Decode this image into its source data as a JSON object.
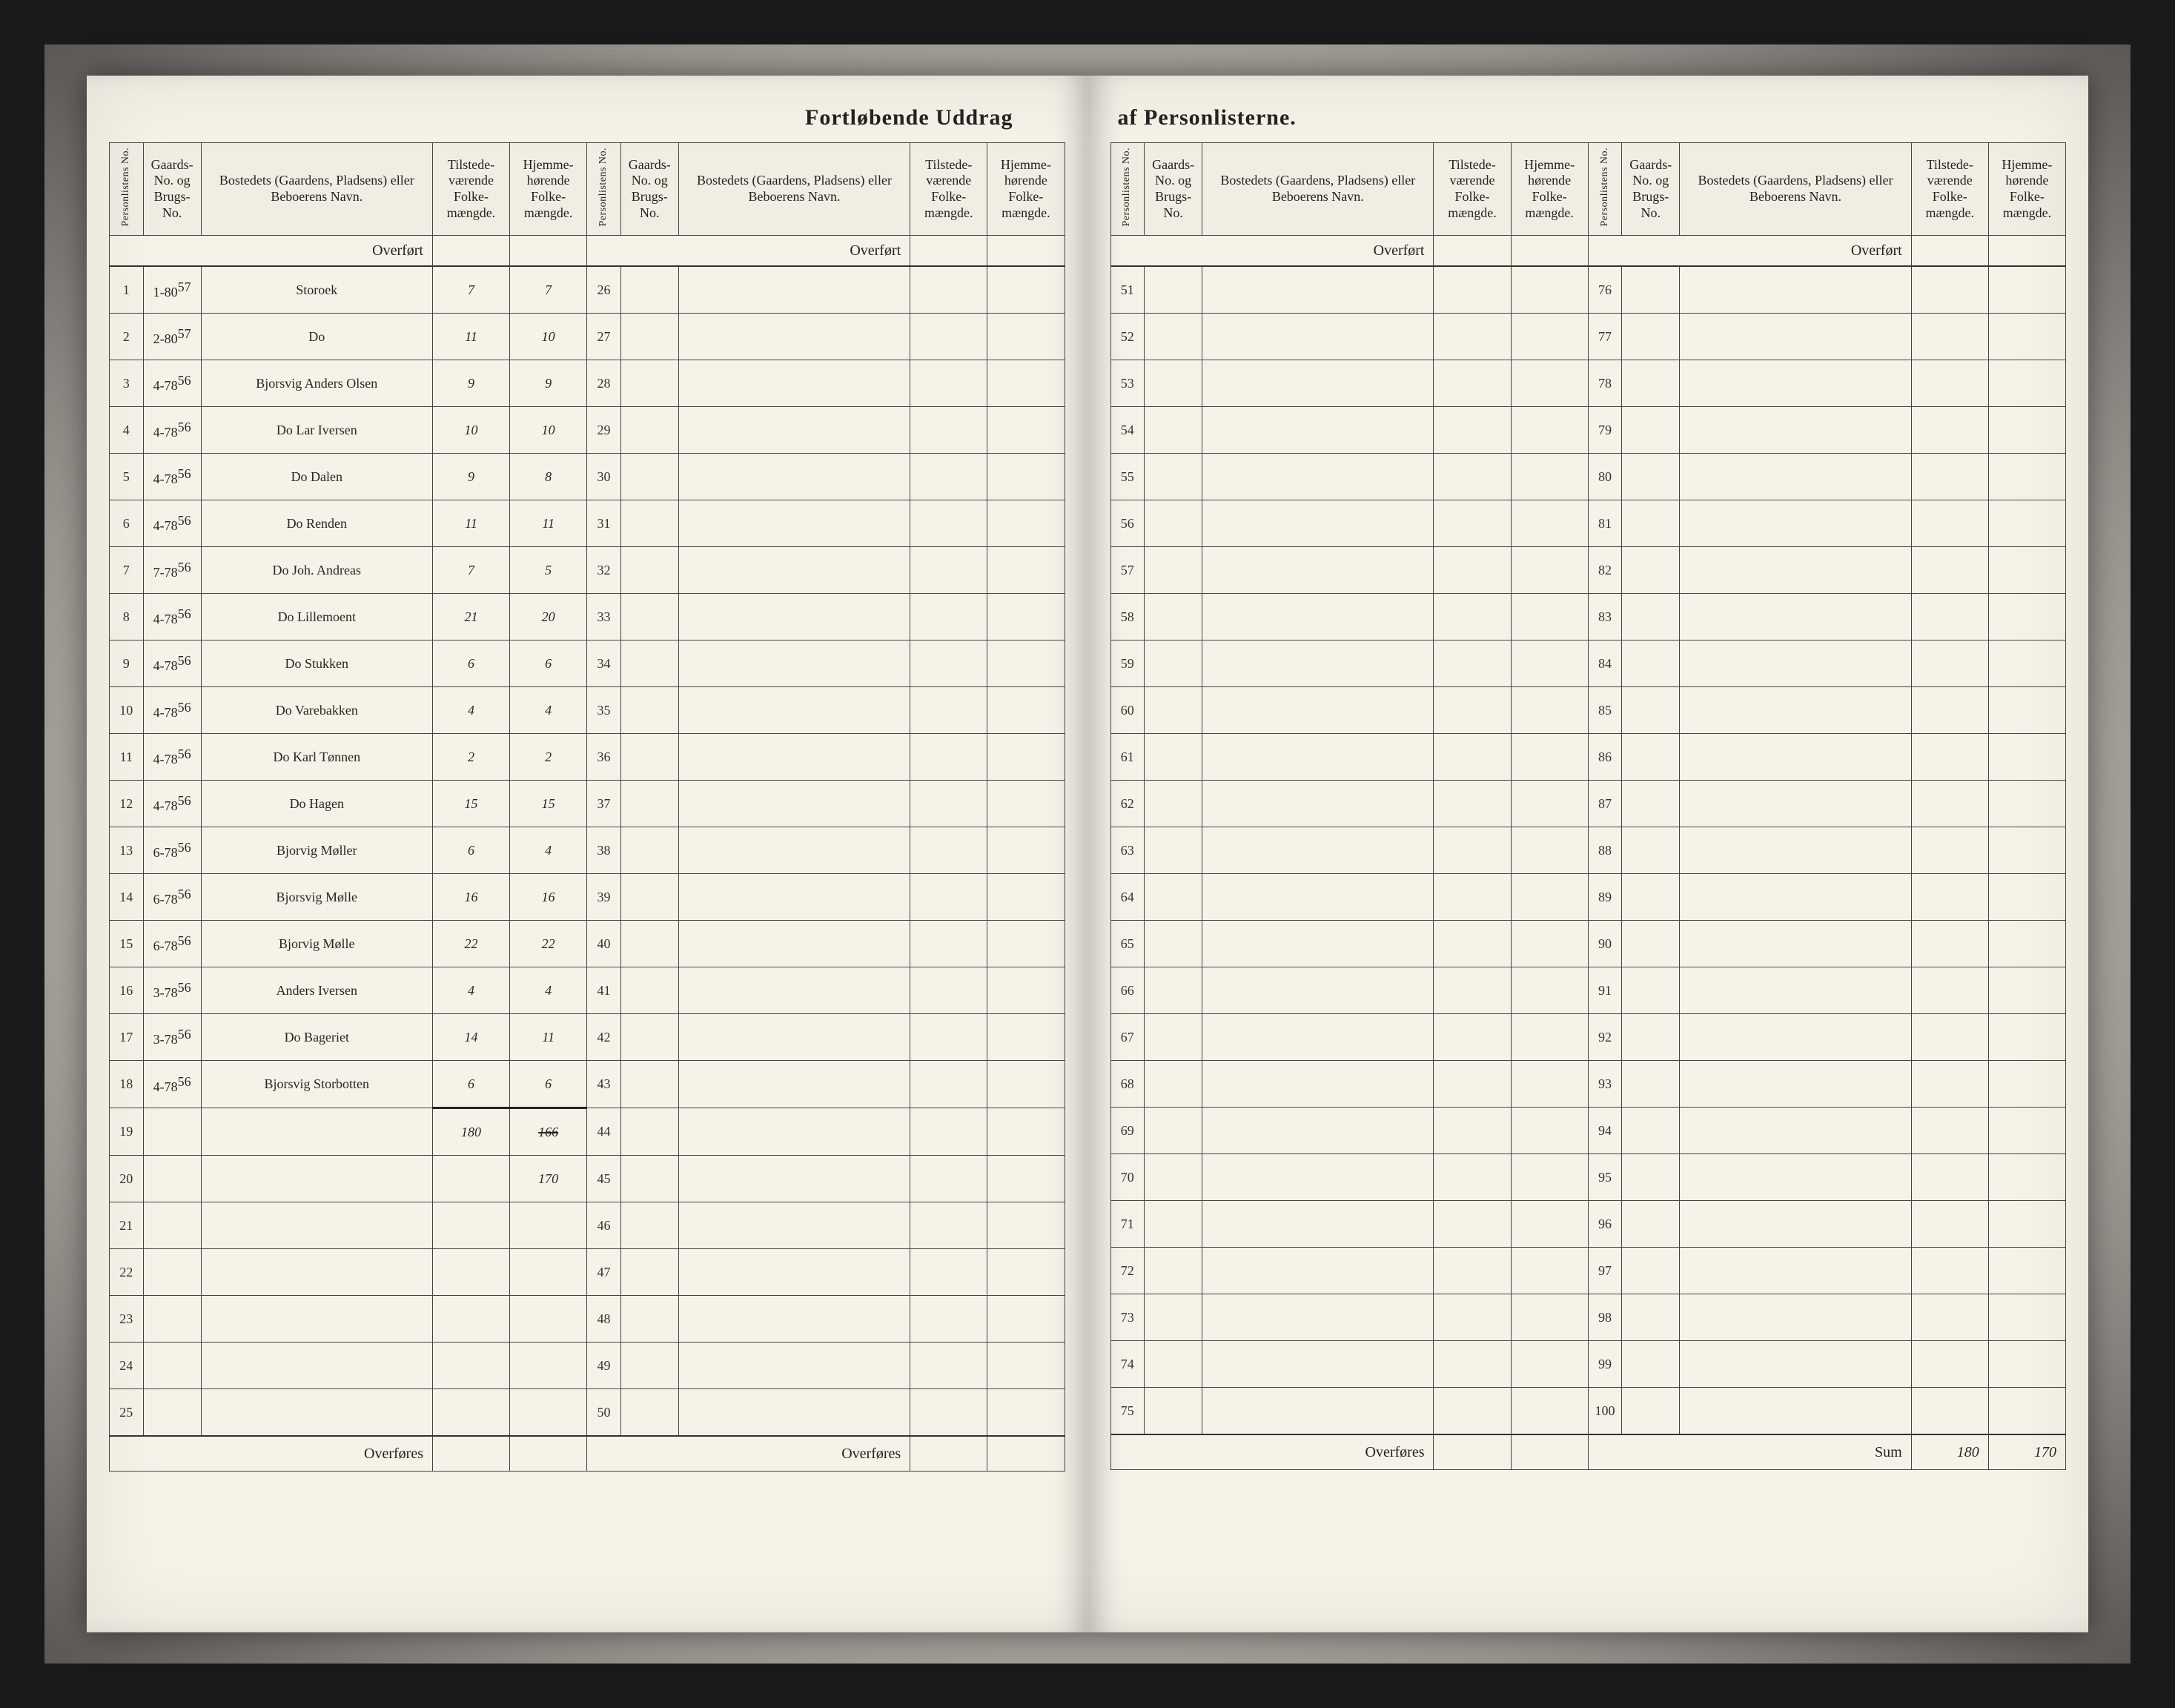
{
  "title_left": "Fortløbende Uddrag",
  "title_right": "af Personlisterne.",
  "headers": {
    "personliste_no": "Personlistens No.",
    "gaards_no": "Gaards-No. og Brugs-No.",
    "bosted": "Bostedets (Gaardens, Pladsens) eller Beboerens Navn.",
    "tilstede": "Tilstede-værende Folke-mængde.",
    "hjemme": "Hjemme-hørende Folke-mængde."
  },
  "overfort": "Overført",
  "overfores": "Overføres",
  "sum_label": "Sum",
  "sum_tilstede": "180",
  "sum_hjemme": "170",
  "subtotal_tilstede": "180",
  "subtotal_hjemme_struck": "166",
  "subtotal_hjemme_corr": "170",
  "sections": [
    {
      "start": 1,
      "rows": [
        {
          "idx": "1",
          "g": "1-80",
          "sup": "57",
          "name": "Storoek",
          "t": "7",
          "h": "7"
        },
        {
          "idx": "2",
          "g": "2-80",
          "sup": "57",
          "name": "Do",
          "t": "11",
          "h": "10"
        },
        {
          "idx": "3",
          "g": "4-78",
          "sup": "56",
          "name": "Bjorsvig Anders Olsen",
          "t": "9",
          "h": "9"
        },
        {
          "idx": "4",
          "g": "4-78",
          "sup": "56",
          "name": "Do Lar Iversen",
          "t": "10",
          "h": "10"
        },
        {
          "idx": "5",
          "g": "4-78",
          "sup": "56",
          "name": "Do Dalen",
          "t": "9",
          "h": "8"
        },
        {
          "idx": "6",
          "g": "4-78",
          "sup": "56",
          "name": "Do Renden",
          "t": "11",
          "h": "11"
        },
        {
          "idx": "7",
          "g": "7-78",
          "sup": "56",
          "name": "Do Joh. Andreas",
          "t": "7",
          "h": "5"
        },
        {
          "idx": "8",
          "g": "4-78",
          "sup": "56",
          "name": "Do Lillemoent",
          "t": "21",
          "h": "20"
        },
        {
          "idx": "9",
          "g": "4-78",
          "sup": "56",
          "name": "Do Stukken",
          "t": "6",
          "h": "6"
        },
        {
          "idx": "10",
          "g": "4-78",
          "sup": "56",
          "name": "Do Varebakken",
          "t": "4",
          "h": "4"
        },
        {
          "idx": "11",
          "g": "4-78",
          "sup": "56",
          "name": "Do Karl Tønnen",
          "t": "2",
          "h": "2"
        },
        {
          "idx": "12",
          "g": "4-78",
          "sup": "56",
          "name": "Do Hagen",
          "t": "15",
          "h": "15"
        },
        {
          "idx": "13",
          "g": "6-78",
          "sup": "56",
          "name": "Bjorvig Møller",
          "t": "6",
          "h": "4"
        },
        {
          "idx": "14",
          "g": "6-78",
          "sup": "56",
          "name": "Bjorsvig Mølle",
          "t": "16",
          "h": "16"
        },
        {
          "idx": "15",
          "g": "6-78",
          "sup": "56",
          "name": "Bjorvig Mølle",
          "t": "22",
          "h": "22"
        },
        {
          "idx": "16",
          "g": "3-78",
          "sup": "56",
          "name": "Anders Iversen",
          "t": "4",
          "h": "4"
        },
        {
          "idx": "17",
          "g": "3-78",
          "sup": "56",
          "name": "Do Bageriet",
          "t": "14",
          "h": "11"
        },
        {
          "idx": "18",
          "g": "4-78",
          "sup": "56",
          "name": "Bjorsvig Storbotten",
          "t": "6",
          "h": "6"
        },
        {
          "idx": "19",
          "g": "",
          "sup": "",
          "name": "",
          "t": "",
          "h": ""
        },
        {
          "idx": "20",
          "g": "",
          "sup": "",
          "name": "",
          "t": "",
          "h": ""
        },
        {
          "idx": "21",
          "g": "",
          "sup": "",
          "name": "",
          "t": "",
          "h": ""
        },
        {
          "idx": "22",
          "g": "",
          "sup": "",
          "name": "",
          "t": "",
          "h": ""
        },
        {
          "idx": "23",
          "g": "",
          "sup": "",
          "name": "",
          "t": "",
          "h": ""
        },
        {
          "idx": "24",
          "g": "",
          "sup": "",
          "name": "",
          "t": "",
          "h": ""
        },
        {
          "idx": "25",
          "g": "",
          "sup": "",
          "name": "",
          "t": "",
          "h": ""
        }
      ]
    },
    {
      "start": 26,
      "rows": 25
    },
    {
      "start": 51,
      "rows": 25
    },
    {
      "start": 76,
      "rows": 25
    }
  ],
  "colors": {
    "paper": "#f5f2e8",
    "ink_print": "#222222",
    "ink_hand": "#2a2522",
    "rule": "#444444",
    "frame": "#1a1a1a"
  },
  "fonts": {
    "print": "Georgia, 'Times New Roman', serif",
    "hand": "'Brush Script MT', 'Segoe Script', cursive",
    "header_pt": 18,
    "title_pt": 30,
    "hand_pt": 30
  }
}
